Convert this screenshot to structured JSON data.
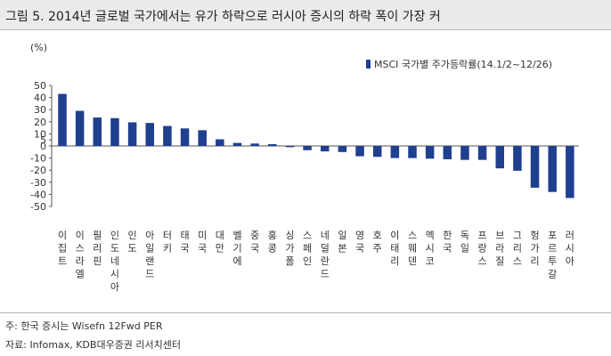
{
  "header": {
    "title": "그림 5. 2014년 글로벌 국가에서는 유가 하락으로 러시아 증시의 하락 폭이 가장 커"
  },
  "footer": {
    "note": "주: 한국 증시는 Wisefn 12Fwd PER",
    "source": "자료: Infomax, KDB대우증권 리서치센터"
  },
  "chart_data": {
    "type": "bar",
    "ylabel": "(%)",
    "ylim": [
      -50,
      50
    ],
    "yticks": [
      50,
      40,
      30,
      20,
      10,
      5,
      0,
      -10,
      -20,
      -30,
      -40,
      -50
    ],
    "grid": false,
    "legend_position": "top-right",
    "categories": [
      "이집트",
      "이스라엘",
      "필리핀",
      "인도네시아",
      "인도",
      "아일랜드",
      "터키",
      "태국",
      "미국",
      "대만",
      "벨기에",
      "중국",
      "홍콩",
      "싱가폴",
      "스페인",
      "네덜란드",
      "일본",
      "영국",
      "호주",
      "이태리",
      "스웨덴",
      "멕시코",
      "한국",
      "독일",
      "프랑스",
      "브라질",
      "그리스",
      "헝가리",
      "포르투갈",
      "러시아"
    ],
    "series": [
      {
        "name": "MSCI 국가별 주가등락률(14.1/2~12/26)",
        "color": "#1f3f8f",
        "values": [
          43,
          29,
          23.5,
          23,
          19.5,
          19,
          16.5,
          14.5,
          13,
          5.5,
          2.5,
          2,
          1.5,
          -1,
          -3.5,
          -4.5,
          -5,
          -8.5,
          -9,
          -10,
          -10,
          -10.5,
          -11,
          -11.5,
          -11.5,
          -18.5,
          -20.5,
          -34.5,
          -38,
          -43
        ]
      }
    ]
  }
}
